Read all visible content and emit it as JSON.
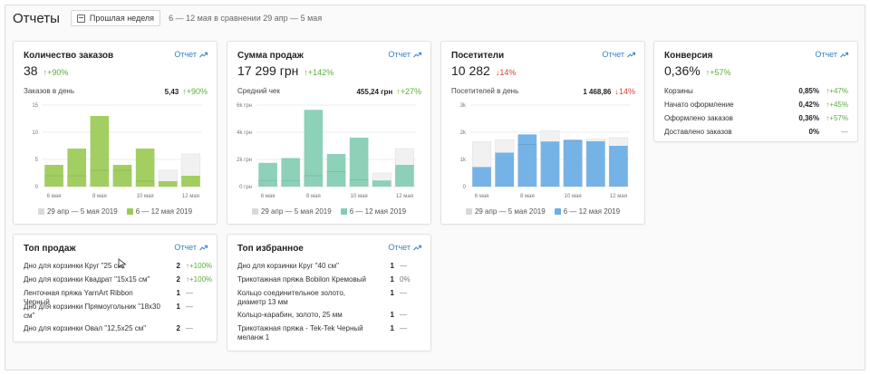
{
  "header": {
    "title": "Отчеты",
    "period_button": "Прошлая неделя",
    "period_text": "6 — 12 мая в сравнении 29 апр — 5 мая"
  },
  "report_link": "Отчет",
  "colors": {
    "green": "#9bcb55",
    "teal": "#83cdb3",
    "blue": "#6aaee6",
    "previous": "#e8e8e8",
    "up": "#5cae3a",
    "down": "#d3463b",
    "link": "#3b82c4"
  },
  "cards": {
    "orders": {
      "title": "Количество заказов",
      "value": "38",
      "delta": "+90%",
      "sub_label": "Заказов в день",
      "sub_value": "5,43",
      "sub_delta": "+90%"
    },
    "sales": {
      "title": "Сумма продаж",
      "value": "17 299 грн",
      "delta": "+142%",
      "sub_label": "Средний чек",
      "sub_value": "455,24 грн",
      "sub_delta": "+27%"
    },
    "visitors": {
      "title": "Посетители",
      "value": "10 282",
      "delta": "14%",
      "sub_label": "Посетителей в день",
      "sub_value": "1 468,86",
      "sub_delta": "14%"
    },
    "conversion": {
      "title": "Конверсия",
      "value": "0,36%",
      "delta": "+57%",
      "rows": [
        {
          "label": "Корзины",
          "value": "0,85%",
          "delta": "+47%"
        },
        {
          "label": "Начато оформление",
          "value": "0,42%",
          "delta": "+45%"
        },
        {
          "label": "Оформлено заказов",
          "value": "0,36%",
          "delta": "+57%"
        },
        {
          "label": "Доставлено заказов",
          "value": "0%",
          "delta": "—"
        }
      ]
    },
    "top_sales": {
      "title": "Топ продаж",
      "rows": [
        {
          "name": "Дно для корзинки Круг \"25 см\"",
          "count": "2",
          "change": "+100%"
        },
        {
          "name": "Дно для корзинки Квадрат \"15x15 см\"",
          "count": "2",
          "change": "+100%"
        },
        {
          "name": "Ленточная пряжа YarnArt Ribbon Черный",
          "count": "1",
          "change": "—"
        },
        {
          "name": "Дно для корзинки Прямоугольник \"18x30 см\"",
          "count": "1",
          "change": "—"
        },
        {
          "name": "Дно для корзинки Овал \"12,5x25 см\"",
          "count": "2",
          "change": "—"
        }
      ]
    },
    "top_favorites": {
      "title": "Топ избранное",
      "rows": [
        {
          "name": "Дно для корзинки Круг \"40 см\"",
          "count": "1",
          "change": "—"
        },
        {
          "name": "Трикотажная пряжа Bobilon Кремовый",
          "count": "1",
          "change": "0%"
        },
        {
          "name": "Кольцо соединительное золото, диаметр 13 мм",
          "count": "1",
          "change": "—"
        },
        {
          "name": "Кольцо-карабин, золото, 25 мм",
          "count": "1",
          "change": "—"
        },
        {
          "name": "Трикотажная пряжа - Tek-Tek Черный меланж 1",
          "count": "1",
          "change": "—"
        }
      ]
    }
  },
  "legend": {
    "previous": "29 апр — 5 мая 2019",
    "current": "6 — 12 мая 2019"
  },
  "chart_data": [
    {
      "type": "bar",
      "categories": [
        "6 мая",
        "7 мая",
        "8 мая",
        "9 мая",
        "10 мая",
        "11 мая",
        "12 мая"
      ],
      "x_tick_labels": [
        "6 мая",
        "",
        "8 мая",
        "",
        "10 мая",
        "",
        "12 мая"
      ],
      "y_ticks": [
        "0",
        "5",
        "10",
        "15"
      ],
      "ylim": [
        0,
        15
      ],
      "series": [
        {
          "name": "6 — 12 мая 2019",
          "values": [
            4,
            7,
            13,
            4,
            7,
            1,
            2
          ]
        },
        {
          "name": "29 апр — 5 мая 2019",
          "values": [
            2,
            2,
            3,
            3,
            1,
            3,
            6
          ]
        }
      ]
    },
    {
      "type": "bar",
      "categories": [
        "6 мая",
        "7 мая",
        "8 мая",
        "9 мая",
        "10 мая",
        "11 мая",
        "12 мая"
      ],
      "x_tick_labels": [
        "6 мая",
        "",
        "8 мая",
        "",
        "10 мая",
        "",
        "12 мая"
      ],
      "y_ticks": [
        "0 грн",
        "2k грн",
        "4k грн",
        "6k грн"
      ],
      "ylim": [
        0,
        6000
      ],
      "series": [
        {
          "name": "6 — 12 мая 2019",
          "values": [
            1750,
            2100,
            5650,
            2400,
            3600,
            450,
            1600
          ]
        },
        {
          "name": "29 апр — 5 мая 2019",
          "values": [
            450,
            450,
            800,
            1100,
            500,
            1000,
            2800
          ]
        }
      ]
    },
    {
      "type": "bar",
      "categories": [
        "6 мая",
        "7 мая",
        "8 мая",
        "9 мая",
        "10 мая",
        "11 мая",
        "12 мая"
      ],
      "x_tick_labels": [
        "6 мая",
        "",
        "8 мая",
        "",
        "10 мая",
        "",
        "12 мая"
      ],
      "y_ticks": [
        "0",
        "1k",
        "2k",
        "3k"
      ],
      "ylim": [
        0,
        3000
      ],
      "series": [
        {
          "name": "6 — 12 мая 2019",
          "values": [
            720,
            1250,
            1920,
            1660,
            1720,
            1670,
            1500
          ]
        },
        {
          "name": "29 апр — 5 мая 2019",
          "values": [
            1650,
            1720,
            1550,
            2050,
            1700,
            1750,
            1800
          ]
        }
      ]
    }
  ]
}
